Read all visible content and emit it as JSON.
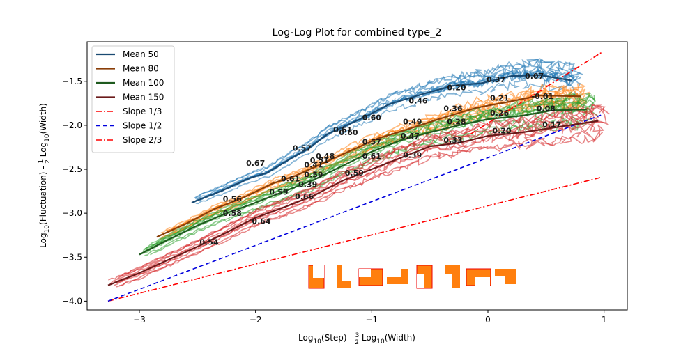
{
  "chart_data": {
    "type": "line",
    "title": "Log-Log Plot for combined type_2",
    "xlabel_parts": [
      "Log",
      "10",
      "(Step) - ",
      "3",
      "2",
      " Log",
      "10",
      "(Width)"
    ],
    "ylabel_parts": [
      "Log",
      "10",
      "(Fluctuation) - ",
      "1",
      "2",
      " Log",
      "10",
      "(Width)"
    ],
    "xlim": [
      -3.45,
      1.2
    ],
    "ylim": [
      -4.1,
      -1.05
    ],
    "xticks": [
      -3,
      -2,
      -1,
      0,
      1
    ],
    "xtick_labels": [
      "−3",
      "−2",
      "−1",
      "0",
      "1"
    ],
    "yticks": [
      -4.0,
      -3.5,
      -3.0,
      -2.5,
      -2.0,
      -1.5
    ],
    "ytick_labels": [
      "−4.0",
      "−3.5",
      "−3.0",
      "−2.5",
      "−2.0",
      "−1.5"
    ],
    "legend_position": "top-left",
    "series": [
      {
        "name": "Mean 50",
        "color": "#1f77b4",
        "mean_color": "#1a4a72",
        "kind": "mean",
        "points": [
          [
            -2.55,
            -2.88
          ],
          [
            -2.3,
            -2.75
          ],
          [
            -2.05,
            -2.6
          ],
          [
            -1.9,
            -2.54
          ],
          [
            -1.7,
            -2.38
          ],
          [
            -1.55,
            -2.27
          ],
          [
            -1.38,
            -2.1
          ],
          [
            -1.2,
            -1.99
          ],
          [
            -1.05,
            -1.9
          ],
          [
            -0.85,
            -1.76
          ],
          [
            -0.55,
            -1.64
          ],
          [
            -0.3,
            -1.55
          ],
          [
            -0.05,
            -1.52
          ],
          [
            0.2,
            -1.44
          ],
          [
            0.45,
            -1.43
          ],
          [
            0.72,
            -1.49
          ]
        ]
      },
      {
        "name": "Mean 80",
        "color": "#ff7f0e",
        "mean_color": "#8a3e08",
        "kind": "mean",
        "points": [
          [
            -2.85,
            -3.27
          ],
          [
            -2.6,
            -3.12
          ],
          [
            -2.35,
            -2.95
          ],
          [
            -2.1,
            -2.82
          ],
          [
            -1.85,
            -2.66
          ],
          [
            -1.65,
            -2.57
          ],
          [
            -1.45,
            -2.45
          ],
          [
            -1.2,
            -2.3
          ],
          [
            -0.95,
            -2.15
          ],
          [
            -0.7,
            -2.05
          ],
          [
            -0.4,
            -1.92
          ],
          [
            -0.1,
            -1.8
          ],
          [
            0.15,
            -1.74
          ],
          [
            0.45,
            -1.66
          ],
          [
            0.8,
            -1.67
          ]
        ]
      },
      {
        "name": "Mean 100",
        "color": "#2ca02c",
        "mean_color": "#1e5a1e",
        "kind": "mean",
        "points": [
          [
            -3.0,
            -3.47
          ],
          [
            -2.75,
            -3.3
          ],
          [
            -2.5,
            -3.14
          ],
          [
            -2.25,
            -3.0
          ],
          [
            -2.0,
            -2.88
          ],
          [
            -1.75,
            -2.75
          ],
          [
            -1.5,
            -2.62
          ],
          [
            -1.25,
            -2.46
          ],
          [
            -1.0,
            -2.3
          ],
          [
            -0.75,
            -2.17
          ],
          [
            -0.5,
            -2.08
          ],
          [
            -0.25,
            -2.0
          ],
          [
            0.0,
            -1.93
          ],
          [
            0.3,
            -1.89
          ],
          [
            0.55,
            -1.83
          ],
          [
            0.85,
            -1.82
          ]
        ]
      },
      {
        "name": "Mean 150",
        "color": "#d62728",
        "mean_color": "#6b1a1a",
        "kind": "mean",
        "points": [
          [
            -3.27,
            -3.82
          ],
          [
            -3.0,
            -3.68
          ],
          [
            -2.75,
            -3.53
          ],
          [
            -2.5,
            -3.38
          ],
          [
            -2.25,
            -3.22
          ],
          [
            -2.0,
            -3.05
          ],
          [
            -1.75,
            -2.93
          ],
          [
            -1.5,
            -2.8
          ],
          [
            -1.25,
            -2.63
          ],
          [
            -1.0,
            -2.5
          ],
          [
            -0.75,
            -2.37
          ],
          [
            -0.5,
            -2.24
          ],
          [
            -0.25,
            -2.2
          ],
          [
            0.0,
            -2.12
          ],
          [
            0.3,
            -2.08
          ],
          [
            0.6,
            -2.02
          ],
          [
            0.95,
            -1.95
          ]
        ]
      },
      {
        "name": "Slope 1/3",
        "color": "#ff0000",
        "kind": "ref",
        "dash": "8 3 2 3",
        "points": [
          [
            -3.27,
            -4.0
          ],
          [
            0.98,
            -2.59
          ]
        ]
      },
      {
        "name": "Slope 1/2",
        "color": "#0000dd",
        "kind": "ref",
        "dash": "6 4",
        "points": [
          [
            -3.27,
            -4.0
          ],
          [
            0.98,
            -1.88
          ]
        ]
      },
      {
        "name": "Slope 2/3",
        "color": "#ff0000",
        "kind": "ref",
        "dash": "8 3 2 3",
        "points": [
          [
            -0.15,
            -2.1
          ],
          [
            0.98,
            -1.17
          ]
        ]
      }
    ],
    "slope_labels": [
      {
        "x": -2.0,
        "y": -2.46,
        "text": "0.67"
      },
      {
        "x": -1.6,
        "y": -2.29,
        "text": "0.57"
      },
      {
        "x": -1.4,
        "y": -2.38,
        "text": "0.48"
      },
      {
        "x": -1.45,
        "y": -2.43,
        "text": "0.51"
      },
      {
        "x": -1.5,
        "y": -2.48,
        "text": "0.41"
      },
      {
        "x": -1.25,
        "y": -2.08,
        "text": "0.61"
      },
      {
        "x": -1.2,
        "y": -2.11,
        "text": "0.60"
      },
      {
        "x": -1.0,
        "y": -1.94,
        "text": "0.60"
      },
      {
        "x": -0.6,
        "y": -1.75,
        "text": "0.46"
      },
      {
        "x": -0.27,
        "y": -1.6,
        "text": "0.20"
      },
      {
        "x": 0.07,
        "y": -1.51,
        "text": "0.37"
      },
      {
        "x": 0.4,
        "y": -1.47,
        "text": "0.07"
      },
      {
        "x": -2.2,
        "y": -2.87,
        "text": "0.56"
      },
      {
        "x": -1.8,
        "y": -2.79,
        "text": "0.59"
      },
      {
        "x": -1.7,
        "y": -2.64,
        "text": "0.61"
      },
      {
        "x": -1.5,
        "y": -2.59,
        "text": "0.59"
      },
      {
        "x": -1.55,
        "y": -2.7,
        "text": "0.39"
      },
      {
        "x": -1.58,
        "y": -2.84,
        "text": "0.66"
      },
      {
        "x": -1.0,
        "y": -2.22,
        "text": "0.57"
      },
      {
        "x": -1.0,
        "y": -2.38,
        "text": "0.61"
      },
      {
        "x": -1.15,
        "y": -2.57,
        "text": "0.59"
      },
      {
        "x": -0.65,
        "y": -2.37,
        "text": "0.39"
      },
      {
        "x": -0.65,
        "y": -1.99,
        "text": "0.49"
      },
      {
        "x": -0.67,
        "y": -2.15,
        "text": "0.47"
      },
      {
        "x": -0.3,
        "y": -1.84,
        "text": "0.36"
      },
      {
        "x": -0.27,
        "y": -1.99,
        "text": "0.28"
      },
      {
        "x": -0.3,
        "y": -2.2,
        "text": "0.33"
      },
      {
        "x": 0.1,
        "y": -1.72,
        "text": "0.21"
      },
      {
        "x": 0.1,
        "y": -1.89,
        "text": "0.26"
      },
      {
        "x": 0.12,
        "y": -2.09,
        "text": "0.20"
      },
      {
        "x": 0.47,
        "y": -1.7,
        "text": "-0.01"
      },
      {
        "x": 0.5,
        "y": -1.84,
        "text": "0.08"
      },
      {
        "x": 0.55,
        "y": -2.02,
        "text": "0.17"
      },
      {
        "x": -2.4,
        "y": -3.36,
        "text": "0.54"
      },
      {
        "x": -2.2,
        "y": -3.03,
        "text": "0.58"
      },
      {
        "x": -1.95,
        "y": -3.12,
        "text": "0.64"
      }
    ],
    "grid": false
  }
}
